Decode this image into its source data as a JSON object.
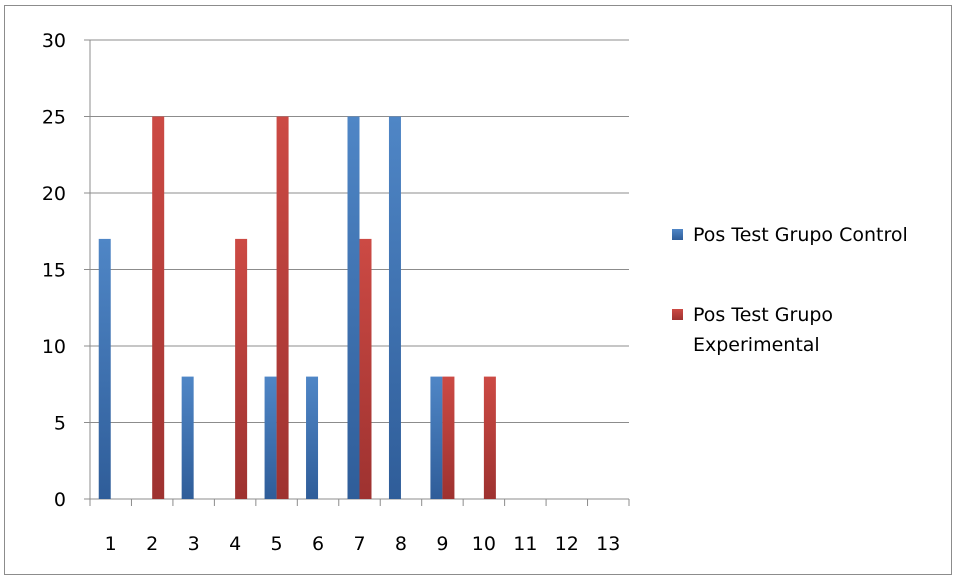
{
  "chart_data": {
    "type": "bar",
    "categories": [
      "1",
      "2",
      "3",
      "4",
      "5",
      "6",
      "7",
      "8",
      "9",
      "10",
      "11",
      "12",
      "13"
    ],
    "series": [
      {
        "name": "Pos Test Grupo Control",
        "color": "#4a7ebb",
        "values": [
          17,
          0,
          8,
          0,
          8,
          8,
          25,
          25,
          8,
          0,
          0,
          0,
          0
        ]
      },
      {
        "name": "Pos Test Grupo Experimental",
        "color": "#be4b48",
        "values": [
          0,
          25,
          0,
          17,
          25,
          0,
          17,
          0,
          8,
          8,
          0,
          0,
          0
        ]
      }
    ],
    "yticks": [
      "0",
      "5",
      "10",
      "15",
      "20",
      "25",
      "30"
    ],
    "ylim": [
      0,
      30
    ],
    "grid": true,
    "legend": {
      "position": "right",
      "lines": [
        [
          "Pos Test Grupo Control"
        ],
        [
          "Pos Test Grupo",
          "Experimental"
        ]
      ]
    }
  }
}
